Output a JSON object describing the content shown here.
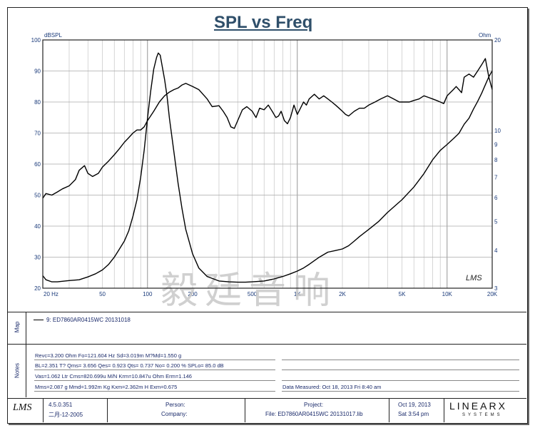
{
  "chart_data": {
    "type": "line",
    "title": "SPL vs Freq",
    "x_scale": "log",
    "xlim": [
      20,
      20000
    ],
    "ylim": [
      20,
      100
    ],
    "y2lim": [
      3,
      20
    ],
    "y2_scale": "log",
    "ylabel": "dBSPL",
    "y2label": "Ohm",
    "grid": true,
    "x_ticks": [
      {
        "v": 20,
        "label": "20 Hz"
      },
      {
        "v": 50,
        "label": "50"
      },
      {
        "v": 100,
        "label": "100"
      },
      {
        "v": 200,
        "label": "200"
      },
      {
        "v": 500,
        "label": "500"
      },
      {
        "v": 1000,
        "label": "1K"
      },
      {
        "v": 2000,
        "label": "2K"
      },
      {
        "v": 5000,
        "label": "5K"
      },
      {
        "v": 10000,
        "label": "10K"
      },
      {
        "v": 20000,
        "label": "20K"
      }
    ],
    "y_ticks": [
      20,
      30,
      40,
      50,
      60,
      70,
      80,
      90,
      100
    ],
    "y2_ticks": [
      3,
      4,
      5,
      6,
      7,
      8,
      9,
      10,
      20
    ],
    "series": [
      {
        "axis": "left",
        "x": [
          20,
          21,
          23,
          25,
          27,
          30,
          33,
          35,
          38,
          40,
          43,
          47,
          50,
          55,
          60,
          65,
          70,
          75,
          80,
          85,
          90,
          95,
          100,
          110,
          120,
          130,
          140,
          150,
          160,
          170,
          180,
          200,
          220,
          250,
          270,
          300,
          320,
          340,
          360,
          380,
          400,
          430,
          460,
          500,
          530,
          560,
          600,
          640,
          680,
          720,
          750,
          780,
          820,
          860,
          900,
          950,
          1000,
          1050,
          1100,
          1150,
          1200,
          1300,
          1400,
          1500,
          1600,
          1700,
          1800,
          1900,
          2000,
          2100,
          2200,
          2400,
          2600,
          2800,
          3000,
          3300,
          3600,
          4000,
          4400,
          4800,
          5200,
          5600,
          6000,
          6500,
          7000,
          7500,
          8000,
          8500,
          9000,
          9500,
          10000,
          10500,
          11000,
          11500,
          12000,
          12500,
          13000,
          14000,
          15000,
          16000,
          17000,
          18000,
          19000,
          20000
        ],
        "y": [
          49,
          50.5,
          50,
          51,
          52,
          53,
          55,
          58,
          59.5,
          57,
          56,
          57,
          59,
          61,
          63,
          65,
          67,
          68.5,
          70,
          71,
          71,
          72,
          74,
          77,
          80,
          82,
          83.2,
          84,
          84.5,
          85.5,
          86,
          85,
          84,
          81,
          78.5,
          78.8,
          77,
          75,
          72,
          71.5,
          74,
          77.5,
          78.5,
          77,
          75,
          78,
          77.5,
          79,
          77,
          75,
          75.5,
          77,
          74,
          73,
          75,
          79,
          76,
          78,
          80,
          79,
          81,
          82.5,
          81,
          82,
          81,
          80,
          79,
          78,
          77,
          76,
          75.5,
          77,
          78,
          78,
          79,
          80,
          81,
          82,
          81,
          80,
          80,
          80,
          80.5,
          81,
          82,
          81.5,
          81,
          80.5,
          80,
          79.5,
          82,
          83,
          84,
          85,
          84,
          83,
          88,
          89,
          88,
          90,
          92,
          94,
          88,
          84
        ]
      },
      {
        "axis": "right",
        "x": [
          20,
          21,
          23,
          25,
          30,
          35,
          40,
          45,
          50,
          55,
          60,
          65,
          70,
          75,
          80,
          85,
          90,
          95,
          100,
          105,
          110,
          115,
          118,
          121.6,
          125,
          130,
          135,
          140,
          150,
          160,
          170,
          180,
          200,
          220,
          250,
          300,
          350,
          400,
          450,
          500,
          600,
          700,
          800,
          900,
          1000,
          1100,
          1200,
          1400,
          1600,
          1800,
          2000,
          2200,
          2400,
          2600,
          3000,
          3500,
          4000,
          5000,
          6000,
          7000,
          8000,
          9000,
          10000,
          11000,
          12000,
          13000,
          14000,
          15000,
          16000,
          17000,
          18000,
          19000,
          20000
        ],
        "y": [
          3.3,
          3.2,
          3.15,
          3.15,
          3.18,
          3.2,
          3.27,
          3.35,
          3.45,
          3.6,
          3.8,
          4.05,
          4.3,
          4.65,
          5.2,
          5.9,
          7,
          8.6,
          11,
          13.5,
          16,
          17.5,
          18.1,
          17.8,
          16.5,
          14.8,
          13,
          11,
          8.5,
          6.7,
          5.5,
          4.7,
          3.9,
          3.5,
          3.28,
          3.17,
          3.15,
          3.14,
          3.14,
          3.15,
          3.17,
          3.22,
          3.28,
          3.35,
          3.42,
          3.5,
          3.6,
          3.8,
          3.95,
          4.0,
          4.05,
          4.15,
          4.3,
          4.45,
          4.7,
          5.0,
          5.35,
          5.9,
          6.5,
          7.2,
          8.0,
          8.6,
          9.0,
          9.4,
          9.8,
          10.5,
          11,
          11.8,
          12.5,
          13.3,
          14.2,
          15.1,
          15.8
        ]
      }
    ]
  },
  "watermark": "毅廷音响",
  "map_legend": "9: ED7860AR0415WC  20131018",
  "tabs": {
    "map": "Map",
    "notes": "Notes"
  },
  "notes": {
    "line1": "Revc=3.200 Ohm  Fo=121.604 Hz  Sd=3.019m M?Md=1.550 g",
    "line2": "BL=2.351 T?  Qms= 3.656  Qes= 0.923  Qts= 0.737  No= 0.200 %  SPLo= 85.0 dB",
    "line3": "Vas=1.062 Ltr  Cms=820.699u M/N  Krm=10.847u Ohm  Erm=1.146",
    "line4": "Mms=2.087 g  Mmd=1.992m Kg  Kxm=2.362m H  Exm=0.675",
    "measured": "Data Measured: Oct 18, 2013  Fri  8:40 am"
  },
  "footer": {
    "logo": "LMS",
    "version": "4.5.0.351",
    "version_date": "二月-12-2005",
    "person_label": "Person:",
    "company_label": "Company:",
    "project_label": "Project:",
    "file": "File: ED7860AR0415WC  20131017.lib",
    "date": "Oct 19, 2013",
    "time": "Sat  3:54 pm",
    "brand": "LINEARX",
    "brand_sub": "SYSTEMS"
  },
  "plot_logo": "LMS"
}
